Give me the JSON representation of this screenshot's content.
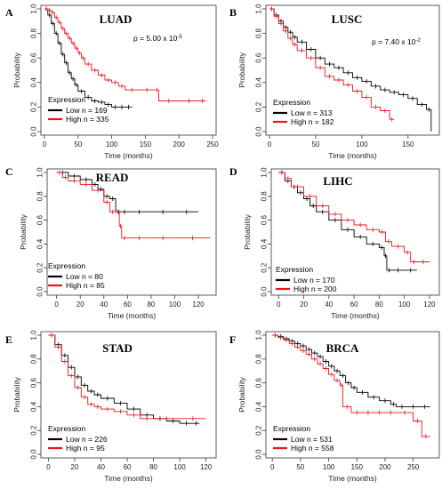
{
  "chart_data": [
    {
      "type": "line",
      "panel_label": "A",
      "title": "LUAD",
      "pvalue": "p = 5.00 x 10",
      "pvalue_exp": "-5",
      "xlabel": "Time (months)",
      "ylabel": "Probability",
      "xlim": [
        0,
        250
      ],
      "ylim": [
        0,
        1
      ],
      "xticks": [
        0,
        50,
        100,
        150,
        200,
        250
      ],
      "yticks": [
        0.0,
        0.2,
        0.4,
        0.6,
        0.8,
        1.0
      ],
      "legend_title": "Expression",
      "series": [
        {
          "name": "Low n = 169",
          "color": "#000000",
          "x": [
            0,
            5,
            10,
            15,
            20,
            25,
            30,
            35,
            40,
            45,
            50,
            60,
            70,
            80,
            90,
            100,
            110,
            120,
            130
          ],
          "y": [
            1.0,
            0.95,
            0.88,
            0.8,
            0.72,
            0.63,
            0.56,
            0.48,
            0.43,
            0.38,
            0.33,
            0.28,
            0.25,
            0.24,
            0.22,
            0.2,
            0.2,
            0.2,
            0.2
          ]
        },
        {
          "name": "High n = 335",
          "color": "#e8161b",
          "x": [
            0,
            5,
            10,
            15,
            20,
            25,
            30,
            35,
            40,
            45,
            50,
            55,
            60,
            70,
            80,
            90,
            100,
            110,
            120,
            140,
            165,
            170,
            200,
            230,
            240
          ],
          "y": [
            1.0,
            0.99,
            0.97,
            0.93,
            0.89,
            0.84,
            0.8,
            0.76,
            0.72,
            0.68,
            0.64,
            0.6,
            0.55,
            0.5,
            0.46,
            0.42,
            0.4,
            0.37,
            0.34,
            0.34,
            0.34,
            0.25,
            0.25,
            0.25,
            0.25
          ]
        }
      ]
    },
    {
      "type": "line",
      "panel_label": "B",
      "title": "LUSC",
      "pvalue": "p = 7.40 x 10",
      "pvalue_exp": "-2",
      "xlabel": "Time (months)",
      "ylabel": "Probability",
      "xlim": [
        0,
        180
      ],
      "ylim": [
        0,
        1
      ],
      "xticks": [
        0,
        50,
        100,
        150
      ],
      "yticks": [
        0.0,
        0.2,
        0.4,
        0.6,
        0.8,
        1.0
      ],
      "legend_title": "Expression",
      "series": [
        {
          "name": "Low n = 313",
          "color": "#000000",
          "x": [
            0,
            5,
            10,
            15,
            20,
            25,
            30,
            40,
            50,
            60,
            70,
            80,
            90,
            100,
            110,
            120,
            130,
            140,
            150,
            160,
            170,
            175
          ],
          "y": [
            1.0,
            0.95,
            0.9,
            0.85,
            0.81,
            0.77,
            0.73,
            0.67,
            0.6,
            0.55,
            0.52,
            0.48,
            0.44,
            0.41,
            0.37,
            0.34,
            0.32,
            0.3,
            0.27,
            0.22,
            0.18,
            0.0
          ]
        },
        {
          "name": "High n = 182",
          "color": "#e8161b",
          "x": [
            0,
            5,
            10,
            15,
            20,
            25,
            30,
            40,
            50,
            60,
            70,
            80,
            90,
            100,
            110,
            120,
            130,
            135
          ],
          "y": [
            1.0,
            0.94,
            0.88,
            0.82,
            0.76,
            0.71,
            0.66,
            0.6,
            0.52,
            0.45,
            0.42,
            0.38,
            0.33,
            0.28,
            0.2,
            0.17,
            0.1,
            0.1
          ]
        }
      ]
    },
    {
      "type": "line",
      "panel_label": "C",
      "title": "READ",
      "xlabel": "Time (months)",
      "ylabel": "Probability",
      "xlim": [
        -5,
        132
      ],
      "ylim": [
        0,
        1
      ],
      "xticks": [
        0,
        20,
        40,
        60,
        80,
        100,
        120
      ],
      "yticks": [
        0.0,
        0.2,
        0.4,
        0.6,
        0.8,
        1.0
      ],
      "legend_title": "Expression",
      "series": [
        {
          "name": "Low n = 80",
          "color": "#000000",
          "x": [
            0,
            10,
            20,
            30,
            35,
            40,
            45,
            50,
            55,
            60,
            80,
            100,
            120
          ],
          "y": [
            1.0,
            0.97,
            0.94,
            0.9,
            0.86,
            0.8,
            0.78,
            0.67,
            0.67,
            0.67,
            0.67,
            0.67,
            0.67
          ]
        },
        {
          "name": "High n = 85",
          "color": "#e8161b",
          "x": [
            0,
            5,
            10,
            20,
            30,
            40,
            45,
            50,
            53,
            55,
            60,
            80,
            100,
            130
          ],
          "y": [
            1.0,
            0.96,
            0.93,
            0.9,
            0.85,
            0.75,
            0.67,
            0.67,
            0.55,
            0.45,
            0.45,
            0.45,
            0.45,
            0.45
          ]
        }
      ]
    },
    {
      "type": "line",
      "panel_label": "D",
      "title": "LIHC",
      "xlabel": "Time (months)",
      "ylabel": "Probability",
      "xlim": [
        -3,
        125
      ],
      "ylim": [
        0,
        1
      ],
      "xticks": [
        0,
        20,
        40,
        60,
        80,
        100,
        120
      ],
      "yticks": [
        0.0,
        0.2,
        0.4,
        0.6,
        0.8,
        1.0
      ],
      "legend_title": "Expression",
      "series": [
        {
          "name": "Low n = 170",
          "color": "#000000",
          "x": [
            0,
            5,
            10,
            15,
            20,
            25,
            30,
            40,
            50,
            60,
            70,
            80,
            84,
            86,
            90,
            100,
            110
          ],
          "y": [
            1.0,
            0.93,
            0.88,
            0.83,
            0.78,
            0.72,
            0.67,
            0.6,
            0.52,
            0.46,
            0.4,
            0.37,
            0.3,
            0.18,
            0.18,
            0.18,
            0.18
          ]
        },
        {
          "name": "High n = 200",
          "color": "#e8161b",
          "x": [
            0,
            5,
            10,
            20,
            30,
            40,
            50,
            60,
            70,
            80,
            85,
            90,
            100,
            105,
            110,
            120
          ],
          "y": [
            1.0,
            0.95,
            0.88,
            0.8,
            0.72,
            0.65,
            0.6,
            0.56,
            0.52,
            0.5,
            0.42,
            0.38,
            0.33,
            0.25,
            0.25,
            0.25
          ]
        }
      ]
    },
    {
      "type": "line",
      "panel_label": "E",
      "title": "STAD",
      "xlabel": "Time (months)",
      "ylabel": "Probability",
      "xlim": [
        -3,
        125
      ],
      "ylim": [
        0,
        1
      ],
      "xticks": [
        0,
        20,
        40,
        60,
        80,
        100,
        120
      ],
      "yticks": [
        0.0,
        0.2,
        0.4,
        0.6,
        0.8,
        1.0
      ],
      "legend_title": "Expression",
      "series": [
        {
          "name": "Low n = 226",
          "color": "#000000",
          "x": [
            0,
            5,
            10,
            15,
            20,
            25,
            30,
            35,
            40,
            50,
            60,
            70,
            80,
            90,
            100,
            110,
            115
          ],
          "y": [
            1.0,
            0.92,
            0.83,
            0.73,
            0.65,
            0.58,
            0.53,
            0.5,
            0.47,
            0.43,
            0.38,
            0.33,
            0.3,
            0.28,
            0.26,
            0.26,
            0.26
          ]
        },
        {
          "name": "High n = 95",
          "color": "#e8161b",
          "x": [
            0,
            5,
            10,
            15,
            20,
            25,
            30,
            35,
            40,
            50,
            60,
            70,
            80,
            100,
            120
          ],
          "y": [
            1.0,
            0.9,
            0.78,
            0.66,
            0.56,
            0.48,
            0.42,
            0.4,
            0.38,
            0.36,
            0.33,
            0.3,
            0.3,
            0.3,
            0.3
          ]
        }
      ]
    },
    {
      "type": "line",
      "panel_label": "F",
      "title": "BRCA",
      "xlabel": "Time (months)",
      "ylabel": "Probability",
      "xlim": [
        -5,
        290
      ],
      "ylim": [
        0,
        1
      ],
      "xticks": [
        0,
        50,
        100,
        150,
        200,
        250
      ],
      "yticks": [
        0.0,
        0.2,
        0.4,
        0.6,
        0.8,
        1.0
      ],
      "legend_title": "Expression",
      "series": [
        {
          "name": "Low n = 531",
          "color": "#000000",
          "x": [
            0,
            10,
            20,
            30,
            40,
            50,
            60,
            70,
            80,
            90,
            100,
            110,
            120,
            130,
            140,
            150,
            170,
            190,
            210,
            220,
            240,
            260,
            280
          ],
          "y": [
            1.0,
            0.99,
            0.97,
            0.95,
            0.93,
            0.91,
            0.88,
            0.85,
            0.82,
            0.78,
            0.74,
            0.7,
            0.66,
            0.6,
            0.56,
            0.52,
            0.48,
            0.45,
            0.42,
            0.4,
            0.4,
            0.4,
            0.4
          ]
        },
        {
          "name": "High n = 558",
          "color": "#e8161b",
          "x": [
            0,
            10,
            20,
            30,
            40,
            50,
            60,
            70,
            80,
            90,
            100,
            110,
            120,
            125,
            140,
            160,
            180,
            200,
            220,
            250,
            265,
            280
          ],
          "y": [
            1.0,
            0.98,
            0.96,
            0.93,
            0.9,
            0.87,
            0.84,
            0.8,
            0.76,
            0.72,
            0.67,
            0.62,
            0.58,
            0.4,
            0.35,
            0.35,
            0.35,
            0.35,
            0.35,
            0.28,
            0.15,
            0.15
          ]
        }
      ]
    }
  ]
}
